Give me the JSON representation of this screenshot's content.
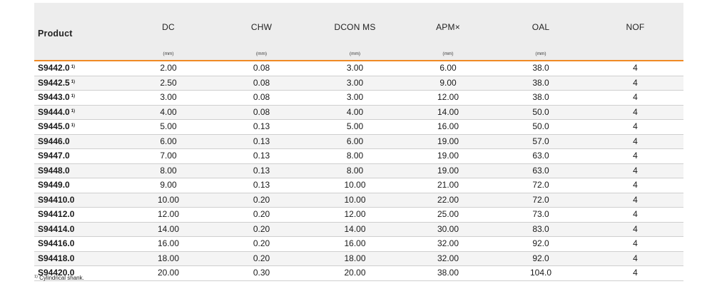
{
  "headers": [
    {
      "name": "Product",
      "unit": ""
    },
    {
      "name": "DC",
      "unit": "(mm)"
    },
    {
      "name": "CHW",
      "unit": "(mm)"
    },
    {
      "name": "DCON MS",
      "unit": "(mm)"
    },
    {
      "name": "APM×",
      "unit": "(mm)"
    },
    {
      "name": "OAL",
      "unit": "(mm)"
    },
    {
      "name": "NOF",
      "unit": ""
    }
  ],
  "rows": [
    {
      "product": "S9442.0",
      "note": "1)",
      "dc": "2.00",
      "chw": "0.08",
      "dcon": "3.00",
      "apm": "6.00",
      "oal": "38.0",
      "nof": "4"
    },
    {
      "product": "S9442.5",
      "note": "1)",
      "dc": "2.50",
      "chw": "0.08",
      "dcon": "3.00",
      "apm": "9.00",
      "oal": "38.0",
      "nof": "4"
    },
    {
      "product": "S9443.0",
      "note": "1)",
      "dc": "3.00",
      "chw": "0.08",
      "dcon": "3.00",
      "apm": "12.00",
      "oal": "38.0",
      "nof": "4"
    },
    {
      "product": "S9444.0",
      "note": "1)",
      "dc": "4.00",
      "chw": "0.08",
      "dcon": "4.00",
      "apm": "14.00",
      "oal": "50.0",
      "nof": "4"
    },
    {
      "product": "S9445.0",
      "note": "1)",
      "dc": "5.00",
      "chw": "0.13",
      "dcon": "5.00",
      "apm": "16.00",
      "oal": "50.0",
      "nof": "4"
    },
    {
      "product": "S9446.0",
      "note": "",
      "dc": "6.00",
      "chw": "0.13",
      "dcon": "6.00",
      "apm": "19.00",
      "oal": "57.0",
      "nof": "4"
    },
    {
      "product": "S9447.0",
      "note": "",
      "dc": "7.00",
      "chw": "0.13",
      "dcon": "8.00",
      "apm": "19.00",
      "oal": "63.0",
      "nof": "4"
    },
    {
      "product": "S9448.0",
      "note": "",
      "dc": "8.00",
      "chw": "0.13",
      "dcon": "8.00",
      "apm": "19.00",
      "oal": "63.0",
      "nof": "4"
    },
    {
      "product": "S9449.0",
      "note": "",
      "dc": "9.00",
      "chw": "0.13",
      "dcon": "10.00",
      "apm": "21.00",
      "oal": "72.0",
      "nof": "4"
    },
    {
      "product": "S94410.0",
      "note": "",
      "dc": "10.00",
      "chw": "0.20",
      "dcon": "10.00",
      "apm": "22.00",
      "oal": "72.0",
      "nof": "4"
    },
    {
      "product": "S94412.0",
      "note": "",
      "dc": "12.00",
      "chw": "0.20",
      "dcon": "12.00",
      "apm": "25.00",
      "oal": "73.0",
      "nof": "4"
    },
    {
      "product": "S94414.0",
      "note": "",
      "dc": "14.00",
      "chw": "0.20",
      "dcon": "14.00",
      "apm": "30.00",
      "oal": "83.0",
      "nof": "4"
    },
    {
      "product": "S94416.0",
      "note": "",
      "dc": "16.00",
      "chw": "0.20",
      "dcon": "16.00",
      "apm": "32.00",
      "oal": "92.0",
      "nof": "4"
    },
    {
      "product": "S94418.0",
      "note": "",
      "dc": "18.00",
      "chw": "0.20",
      "dcon": "18.00",
      "apm": "32.00",
      "oal": "92.0",
      "nof": "4"
    },
    {
      "product": "S94420.0",
      "note": "",
      "dc": "20.00",
      "chw": "0.30",
      "dcon": "20.00",
      "apm": "38.00",
      "oal": "104.0",
      "nof": "4"
    }
  ],
  "footnote": {
    "marker": "1)",
    "text": "Cylindrical shank."
  },
  "colors": {
    "accent_line": "#f08a24",
    "header_bg": "#ededed"
  }
}
